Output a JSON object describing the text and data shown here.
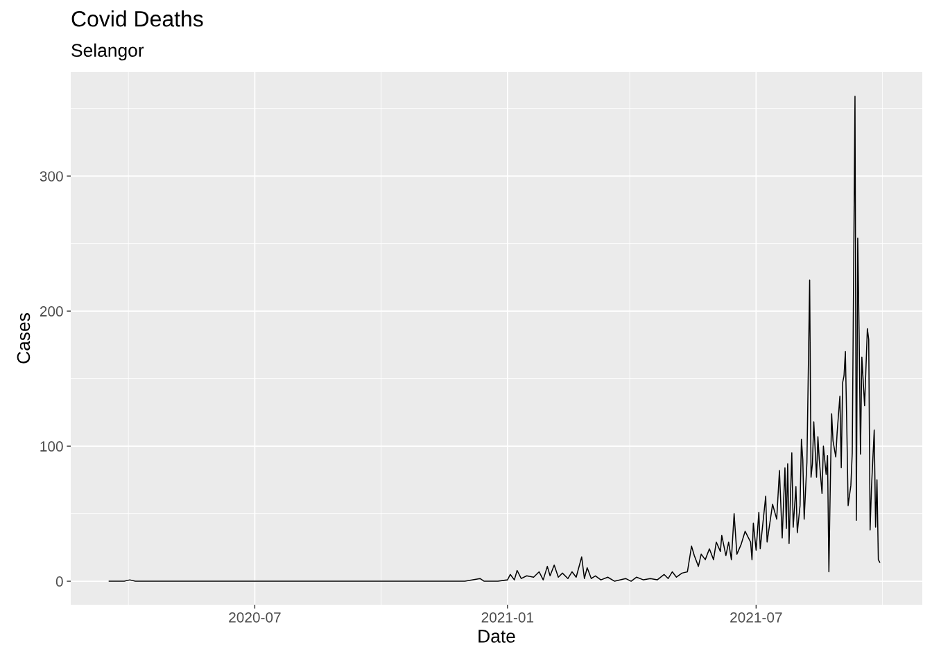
{
  "chart_data": {
    "type": "line",
    "title": "Covid Deaths",
    "subtitle": "Selangor",
    "xlabel": "Date",
    "ylabel": "Cases",
    "xlim": [
      "2020-02-18",
      "2021-10-30"
    ],
    "ylim": [
      -17.4,
      377
    ],
    "xticks": [
      {
        "value": "2020-07-01",
        "label": "2020-07"
      },
      {
        "value": "2021-01-01",
        "label": "2021-01"
      },
      {
        "value": "2021-07-01",
        "label": "2021-07"
      }
    ],
    "yticks": [
      0,
      100,
      200,
      300
    ],
    "grid": true,
    "series": [
      {
        "color": "#000000",
        "x": [
          "2020-03-17",
          "2020-03-28",
          "2020-04-01",
          "2020-04-05",
          "2020-04-15",
          "2020-05-01",
          "2020-06-01",
          "2020-08-01",
          "2020-10-01",
          "2020-12-01",
          "2020-12-12",
          "2020-12-15",
          "2020-12-25",
          "2021-01-01",
          "2021-01-03",
          "2021-01-06",
          "2021-01-08",
          "2021-01-11",
          "2021-01-15",
          "2021-01-20",
          "2021-01-24",
          "2021-01-27",
          "2021-01-30",
          "2021-02-01",
          "2021-02-04",
          "2021-02-07",
          "2021-02-10",
          "2021-02-14",
          "2021-02-17",
          "2021-02-20",
          "2021-02-24",
          "2021-02-26",
          "2021-02-28",
          "2021-03-03",
          "2021-03-06",
          "2021-03-10",
          "2021-03-15",
          "2021-03-20",
          "2021-03-28",
          "2021-04-01",
          "2021-04-05",
          "2021-04-10",
          "2021-04-15",
          "2021-04-20",
          "2021-04-25",
          "2021-04-28",
          "2021-05-01",
          "2021-05-04",
          "2021-05-08",
          "2021-05-12",
          "2021-05-15",
          "2021-05-17",
          "2021-05-20",
          "2021-05-22",
          "2021-05-25",
          "2021-05-28",
          "2021-05-31",
          "2021-06-02",
          "2021-06-05",
          "2021-06-06",
          "2021-06-09",
          "2021-06-11",
          "2021-06-13",
          "2021-06-15",
          "2021-06-17",
          "2021-06-20",
          "2021-06-23",
          "2021-06-27",
          "2021-06-28",
          "2021-06-29",
          "2021-07-01",
          "2021-07-03",
          "2021-07-04",
          "2021-07-08",
          "2021-07-09",
          "2021-07-13",
          "2021-07-16",
          "2021-07-18",
          "2021-07-20",
          "2021-07-22",
          "2021-07-23",
          "2021-07-24",
          "2021-07-25",
          "2021-07-27",
          "2021-07-28",
          "2021-07-30",
          "2021-07-31",
          "2021-08-02",
          "2021-08-03",
          "2021-08-04",
          "2021-08-05",
          "2021-08-07",
          "2021-08-08",
          "2021-08-09",
          "2021-08-10",
          "2021-08-11",
          "2021-08-12",
          "2021-08-14",
          "2021-08-15",
          "2021-08-16",
          "2021-08-18",
          "2021-08-19",
          "2021-08-21",
          "2021-08-22",
          "2021-08-23",
          "2021-08-24",
          "2021-08-25",
          "2021-08-26",
          "2021-08-28",
          "2021-08-29",
          "2021-08-31",
          "2021-09-01",
          "2021-09-02",
          "2021-09-03",
          "2021-09-04",
          "2021-09-05",
          "2021-09-06",
          "2021-09-08",
          "2021-09-09",
          "2021-09-10",
          "2021-09-11",
          "2021-09-12",
          "2021-09-13",
          "2021-09-14",
          "2021-09-15",
          "2021-09-16",
          "2021-09-18",
          "2021-09-20",
          "2021-09-21",
          "2021-09-22",
          "2021-09-23",
          "2021-09-25",
          "2021-09-26",
          "2021-09-27",
          "2021-09-28",
          "2021-09-29"
        ],
        "values": [
          0,
          0,
          1,
          0,
          0,
          0,
          0,
          0,
          0,
          0,
          2,
          0,
          0,
          1,
          5,
          1,
          8,
          2,
          4,
          3,
          7,
          1,
          11,
          4,
          12,
          3,
          6,
          2,
          7,
          3,
          18,
          2,
          10,
          2,
          4,
          1,
          3,
          0,
          2,
          0,
          3,
          1,
          2,
          1,
          5,
          2,
          7,
          3,
          6,
          7,
          26,
          19,
          11,
          20,
          16,
          24,
          16,
          29,
          22,
          34,
          19,
          29,
          16,
          50,
          20,
          27,
          37,
          29,
          16,
          43,
          23,
          51,
          24,
          63,
          29,
          57,
          46,
          82,
          32,
          84,
          39,
          87,
          28,
          95,
          40,
          70,
          36,
          56,
          105,
          90,
          46,
          88,
          155,
          223,
          77,
          87,
          118,
          77,
          107,
          90,
          65,
          100,
          79,
          93,
          7,
          70,
          124,
          104,
          92,
          110,
          137,
          84,
          147,
          152,
          170,
          117,
          56,
          71,
          95,
          227,
          359,
          45,
          254,
          184,
          94,
          166,
          130,
          187,
          179,
          38,
          69,
          112,
          40,
          75,
          16,
          14
        ]
      }
    ]
  }
}
